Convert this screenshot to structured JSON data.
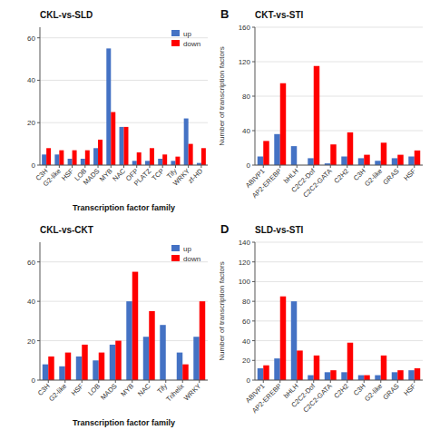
{
  "chart_data": [
    {
      "type": "bar",
      "title": "CKL-vs-SLD",
      "categories": [
        "C3H",
        "G2-like",
        "HSF",
        "LOB",
        "MADS",
        "MYB",
        "NAC",
        "OFP",
        "PLATZ",
        "TCP",
        "Tify",
        "WRKY",
        "zf-HD"
      ],
      "series": [
        {
          "name": "up",
          "color": "#4472C4",
          "values": [
            5,
            5,
            3,
            3,
            8,
            55,
            18,
            2,
            2,
            3,
            2,
            22,
            1
          ]
        },
        {
          "name": "down",
          "color": "#FF0000",
          "values": [
            8,
            7,
            7,
            7,
            12,
            25,
            18,
            6,
            8,
            5,
            4,
            10,
            8
          ]
        }
      ],
      "ylim": [
        0,
        65
      ],
      "yticks": [
        0,
        20,
        40,
        60
      ],
      "xlabel": "Transcription factor family",
      "legend": "upper right"
    },
    {
      "type": "bar",
      "title": "CKT-vs-STI",
      "annotations": [
        "B"
      ],
      "categories": [
        "ABIVP1",
        "AP2-EREBP",
        "bHLH",
        "C2C2-Dof",
        "C2C2-GATA",
        "C2H2",
        "C3H",
        "G2-like",
        "GRAS",
        "HSF"
      ],
      "series": [
        {
          "color": "#4472C4",
          "values": [
            10,
            36,
            22,
            8,
            2,
            10,
            8,
            5,
            8,
            10
          ]
        },
        {
          "color": "#FF0000",
          "values": [
            28,
            95,
            0,
            115,
            24,
            38,
            12,
            26,
            12,
            17
          ]
        }
      ],
      "ylim": [
        0,
        160
      ],
      "yticks": [
        0,
        40,
        80,
        120,
        160
      ],
      "ylabel": "Number of transcription factors"
    },
    {
      "type": "bar",
      "title": "CKL-vs-CKT",
      "categories": [
        "C3H",
        "G2-like",
        "HSF",
        "LOB",
        "MADS",
        "MYB",
        "NAC",
        "Tify",
        "Trihelix",
        "WRKY"
      ],
      "series": [
        {
          "name": "up",
          "color": "#4472C4",
          "values": [
            8,
            7,
            12,
            10,
            18,
            40,
            22,
            28,
            14,
            22
          ]
        },
        {
          "name": "down",
          "color": "#FF0000",
          "values": [
            12,
            14,
            18,
            14,
            20,
            55,
            35,
            0,
            8,
            40
          ]
        }
      ],
      "ylim": [
        0,
        70
      ],
      "yticks": [
        0,
        20,
        40,
        60
      ],
      "xlabel": "Transcription factor family",
      "legend": "upper right"
    },
    {
      "type": "bar",
      "title": "SLD-vs-STI",
      "annotations": [
        "D"
      ],
      "categories": [
        "ABIVP1",
        "AP2-EREBP",
        "bHLH",
        "C2C2-Dof",
        "C2C2-GATA",
        "C2H2",
        "C3H",
        "G2-like",
        "GRAS",
        "HSF"
      ],
      "series": [
        {
          "color": "#4472C4",
          "values": [
            12,
            22,
            80,
            5,
            8,
            8,
            5,
            5,
            8,
            10
          ]
        },
        {
          "color": "#FF0000",
          "values": [
            15,
            85,
            30,
            25,
            10,
            38,
            5,
            25,
            10,
            12
          ]
        }
      ],
      "ylim": [
        0,
        140
      ],
      "yticks": [
        0,
        20,
        40,
        60,
        80,
        100,
        120,
        140
      ],
      "ylabel": "Number of transcription factors"
    }
  ]
}
